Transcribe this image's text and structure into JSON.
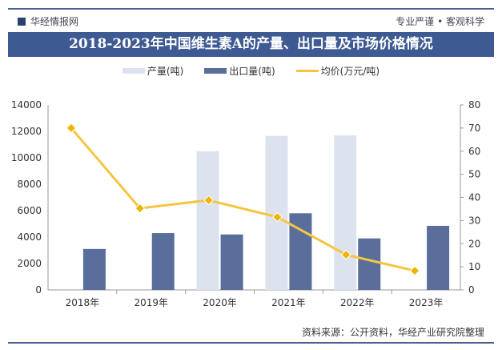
{
  "header": {
    "brand": "华经情报网",
    "slogan": "专业严谨 • 客观科学"
  },
  "title": "2018-2023年中国维生素A的产量、出口量及市场价格情况",
  "source": "资料来源：公开资料，华经产业研究院整理",
  "chart_data": {
    "type": "bar+line",
    "title": "2018-2023年中国维生素A的产量、出口量及市场价格情况",
    "categories": [
      "2018年",
      "2019年",
      "2020年",
      "2021年",
      "2022年",
      "2023年"
    ],
    "series": [
      {
        "name": "产量(吨)",
        "type": "bar",
        "axis": "left",
        "color": "#dde3ee",
        "values": [
          null,
          null,
          10500,
          11650,
          11700,
          null
        ]
      },
      {
        "name": "出口量(吨)",
        "type": "bar",
        "axis": "left",
        "color": "#5a6e9c",
        "values": [
          3100,
          4300,
          4200,
          5800,
          3900,
          4850
        ]
      },
      {
        "name": "均价(万元/吨)",
        "type": "line",
        "axis": "right",
        "color": "#f5c542",
        "values": [
          70,
          35.3,
          38.8,
          31.5,
          15.2,
          8.3
        ]
      }
    ],
    "y_left": {
      "range": [
        0,
        14000
      ],
      "ticks": [
        "0",
        "2000",
        "4000",
        "6000",
        "8000",
        "10000",
        "12000",
        "14000"
      ]
    },
    "y_right": {
      "range": [
        0,
        80
      ],
      "ticks": [
        "0",
        "10",
        "20",
        "30",
        "40",
        "50",
        "60",
        "70",
        "80"
      ]
    },
    "grid": false,
    "legend": "top"
  }
}
